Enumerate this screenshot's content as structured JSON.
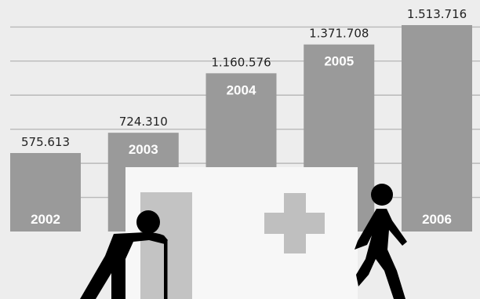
{
  "chart_data": {
    "type": "bar",
    "categories": [
      "2002",
      "2003",
      "2004",
      "2005",
      "2006"
    ],
    "values": [
      575613,
      724310,
      1160576,
      1371708,
      1513716
    ],
    "value_labels": [
      "575.613",
      "724.310",
      "1.160.576",
      "1.371.708",
      "1.513.716"
    ],
    "ylim": [
      0,
      1650000
    ],
    "grid": true,
    "title": "",
    "xlabel": "",
    "ylabel": "",
    "colors": {
      "bar": "#9a9a9a",
      "grid": "#b9b9b9",
      "background": "#ededed",
      "category_label": "#ffffff",
      "value_label": "#222222",
      "building": "#f7f7f7",
      "cross": "#bfbfbf",
      "door": "#c3c3c3",
      "figures": "#000000"
    }
  },
  "illustration": {
    "icons": [
      "hospital-building-icon",
      "medical-cross-icon",
      "elderly-person-with-cane-icon",
      "walking-person-icon"
    ]
  }
}
